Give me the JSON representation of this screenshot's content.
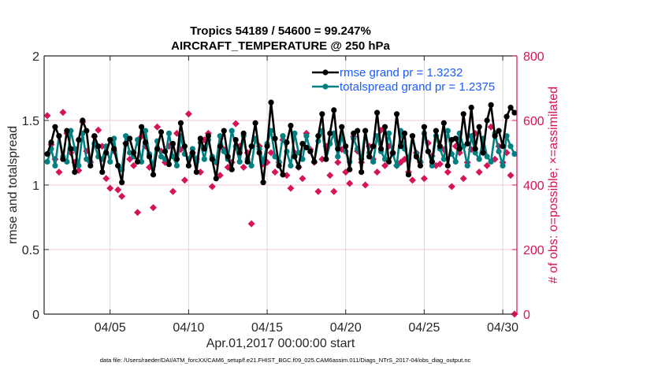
{
  "chart_data": {
    "type": "line",
    "title": [
      "Tropics 54189 / 54600 = 99.247%",
      "AIRCRAFT_TEMPERATURE @ 250 hPa"
    ],
    "xlabel": "Apr.01,2017 00:00:00 start",
    "ylabel_left": "rmse and totalspread",
    "ylabel_right": "# of obs: o=possible; ×=assimilated",
    "footnote": "data file: /Users/raeder/DAI/ATM_forcXX/CAM6_setup/f.e21.FHIST_BGC.f09_025.CAM6assim.011/Diags_NTrS_2017-04/obs_diag_output.nc",
    "x_unit": "days since Apr.01,2017 00:00:00",
    "xlim": [
      -0.2,
      29.9
    ],
    "x_ticks": [
      {
        "value": 4,
        "label": "04/05"
      },
      {
        "value": 9,
        "label": "04/10"
      },
      {
        "value": 14,
        "label": "04/15"
      },
      {
        "value": 19,
        "label": "04/20"
      },
      {
        "value": 24,
        "label": "04/25"
      },
      {
        "value": 29,
        "label": "04/30"
      }
    ],
    "ylim_left": [
      0,
      2
    ],
    "y_ticks_left": [
      "0",
      "0.5",
      "1",
      "1.5",
      "2"
    ],
    "ylim_right": [
      0,
      800
    ],
    "y_ticks_right": [
      "0",
      "200",
      "400",
      "600",
      "800"
    ],
    "grid": true,
    "legend_position": "top-right",
    "colors": {
      "rmse": "#000000",
      "totalspread": "#008080",
      "obs": "#d6145a",
      "legend_text": "#1a5cff",
      "grid": "#d9d9d9",
      "grid_right": "#f2c6d6"
    },
    "series": [
      {
        "name": "rmse grand pr = 1.3232",
        "key": "rmse",
        "axis": "left",
        "values": [
          1.24,
          1.33,
          1.45,
          1.38,
          1.2,
          1.42,
          1.28,
          1.1,
          1.35,
          1.5,
          1.42,
          1.15,
          1.38,
          1.3,
          1.1,
          1.25,
          1.35,
          1.28,
          1.15,
          1.02,
          1.32,
          1.36,
          1.25,
          1.18,
          1.45,
          1.33,
          1.22,
          1.08,
          1.28,
          1.41,
          1.26,
          1.16,
          1.32,
          1.2,
          1.48,
          1.3,
          1.15,
          1.25,
          1.1,
          1.36,
          1.28,
          1.38,
          1.2,
          1.05,
          1.3,
          1.42,
          1.22,
          1.12,
          1.35,
          1.25,
          1.4,
          1.18,
          1.3,
          1.48,
          1.25,
          1.02,
          1.3,
          1.64,
          1.36,
          1.15,
          1.08,
          1.33,
          1.46,
          1.22,
          1.14,
          1.32,
          1.29,
          1.26,
          1.18,
          1.38,
          1.55,
          1.2,
          1.4,
          1.58,
          1.28,
          1.45,
          1.3,
          1.12,
          1.4,
          1.42,
          1.1,
          1.42,
          1.22,
          1.3,
          1.56,
          1.28,
          1.45,
          1.18,
          1.25,
          1.55,
          1.3,
          1.4,
          1.08,
          1.38,
          1.22,
          1.15,
          1.45,
          1.26,
          1.18,
          1.42,
          1.3,
          1.48,
          1.15,
          1.35,
          1.36,
          1.28,
          1.55,
          1.32,
          1.6,
          1.28,
          1.45,
          1.25,
          1.5,
          1.62,
          1.38,
          1.42,
          1.3,
          1.53,
          1.6,
          1.56
        ]
      },
      {
        "name": "totalspread grand pr = 1.2375",
        "key": "totalspread",
        "axis": "left",
        "values": [
          1.18,
          1.28,
          1.15,
          1.38,
          1.22,
          1.18,
          1.42,
          1.28,
          1.15,
          1.4,
          1.2,
          1.18,
          1.32,
          1.22,
          1.2,
          1.3,
          1.18,
          1.36,
          1.15,
          1.12,
          1.38,
          1.25,
          1.22,
          1.35,
          1.18,
          1.42,
          1.24,
          1.15,
          1.34,
          1.22,
          1.2,
          1.4,
          1.22,
          1.15,
          1.38,
          1.24,
          1.2,
          1.28,
          1.18,
          1.33,
          1.2,
          1.35,
          1.22,
          1.18,
          1.38,
          1.26,
          1.2,
          1.42,
          1.3,
          1.18,
          1.38,
          1.2,
          1.15,
          1.36,
          1.28,
          1.18,
          1.32,
          1.42,
          1.22,
          1.18,
          1.38,
          1.26,
          1.15,
          1.4,
          1.25,
          1.2,
          1.38,
          1.26,
          1.18,
          1.34,
          1.42,
          1.2,
          1.32,
          1.4,
          1.22,
          1.38,
          1.26,
          1.18,
          1.36,
          1.28,
          1.2,
          1.42,
          1.25,
          1.18,
          1.38,
          1.26,
          1.2,
          1.4,
          1.24,
          1.15,
          1.42,
          1.28,
          1.2,
          1.38,
          1.24,
          1.18,
          1.4,
          1.26,
          1.15,
          1.38,
          1.28,
          1.2,
          1.42,
          1.24,
          1.18,
          1.4,
          1.3,
          1.15,
          1.38,
          1.25,
          1.2,
          1.36,
          1.22,
          1.18,
          1.4,
          1.26,
          1.15,
          1.38,
          1.3,
          1.24
        ]
      },
      {
        "name": "# of obs assimilated",
        "key": "obs",
        "axis": "right",
        "values": [
          615,
          525,
          480,
          440,
          625,
          560,
          500,
          470,
          445,
          595,
          505,
          470,
          550,
          570,
          520,
          420,
          390,
          505,
          385,
          365,
          530,
          480,
          460,
          315,
          550,
          520,
          455,
          330,
          580,
          505,
          470,
          520,
          380,
          560,
          510,
          415,
          620,
          500,
          480,
          440,
          540,
          560,
          395,
          470,
          430,
          510,
          455,
          470,
          590,
          520,
          455,
          500,
          280,
          540,
          520,
          465,
          470,
          500,
          440,
          470,
          540,
          430,
          390,
          500,
          455,
          420,
          560,
          510,
          470,
          380,
          480,
          520,
          430,
          380,
          470,
          510,
          440,
          405,
          550,
          505,
          470,
          400,
          520,
          480,
          440,
          570,
          460,
          520,
          500,
          460,
          470,
          480,
          440,
          415,
          500,
          470,
          420,
          530,
          490,
          460,
          465,
          510,
          440,
          395,
          520,
          500,
          420,
          470,
          510,
          560,
          440,
          500,
          460,
          580,
          480,
          520,
          470,
          500,
          430,
          0
        ]
      }
    ],
    "x_start": 0.0,
    "x_step": 0.25
  }
}
